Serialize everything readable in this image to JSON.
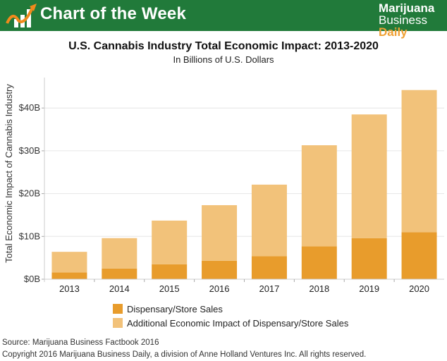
{
  "banner": {
    "label": "Chart of the Week",
    "icon": "chart-trend-icon",
    "brand_line1": "Marijuana",
    "brand_line2a": "Business",
    "brand_line2b": "Daily"
  },
  "colors": {
    "banner_green": "#217a3a",
    "dispensary": "#e89c2c",
    "additional": "#f2c27a",
    "brand_accent": "#f0a033"
  },
  "chart_data": {
    "type": "bar",
    "stacked": true,
    "title": "U.S. Cannabis Industry Total Economic Impact: 2013-2020",
    "subtitle": "In Billions of U.S. Dollars",
    "xlabel": "",
    "ylabel": "Total Economic Impact of Cannabis Industry",
    "categories": [
      "2013",
      "2014",
      "2015",
      "2016",
      "2017",
      "2018",
      "2019",
      "2020"
    ],
    "series": [
      {
        "name": "Dispensary/Store Sales",
        "values": [
          1.6,
          2.5,
          3.5,
          4.3,
          5.4,
          7.7,
          9.6,
          11.0
        ]
      },
      {
        "name": "Additional Economic Impact of Dispensary/Store Sales",
        "values": [
          4.8,
          7.1,
          10.2,
          13.0,
          16.7,
          23.6,
          28.9,
          33.2
        ]
      }
    ],
    "totals": [
      6.4,
      9.6,
      13.7,
      17.3,
      22.1,
      31.3,
      38.5,
      44.2
    ],
    "ylim": [
      0,
      47
    ],
    "yticks": [
      0,
      10,
      20,
      30,
      40
    ],
    "ytick_labels": [
      "$0B",
      "$10B",
      "$20B",
      "$30B",
      "$40B"
    ],
    "grid": true,
    "legend_position": "bottom"
  },
  "footer": {
    "source": "Source: Marijuana Business Factbook 2016",
    "copyright": "Copyright 2016 Marijuana Business Daily, a division of Anne Holland Ventures Inc. All rights reserved."
  }
}
